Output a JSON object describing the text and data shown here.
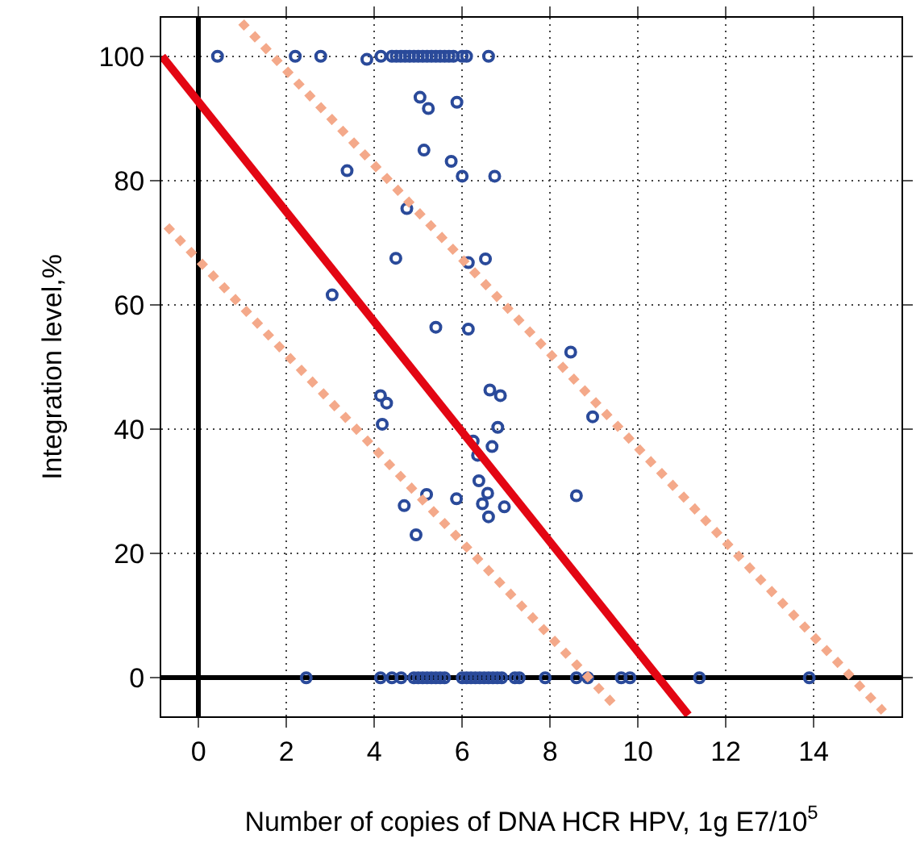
{
  "chart_data": {
    "type": "scatter",
    "xlabel": "Number of copies of DNA HCR HPV, 1g E7/10$^{5}$",
    "ylabel": "Integration level,%",
    "xlim": [
      -0.85,
      16
    ],
    "ylim": [
      -6.2,
      106.2
    ],
    "xticks": [
      0,
      2,
      4,
      6,
      8,
      10,
      12,
      14
    ],
    "yticks": [
      0,
      20,
      40,
      60,
      80,
      100
    ],
    "grid": true,
    "series": [
      {
        "color": "#2a4a9a",
        "marker": "circle",
        "x": [
          0.43,
          2.2,
          2.78,
          3.83,
          4.15,
          4.4,
          4.5,
          4.6,
          4.7,
          4.8,
          4.9,
          5.0,
          5.1,
          5.2,
          5.3,
          5.4,
          5.5,
          5.6,
          5.7,
          5.8,
          6.0,
          6.1,
          6.6,
          5.04,
          5.23,
          5.88,
          5.13,
          5.75,
          6.0,
          6.74,
          3.38,
          4.74,
          4.49,
          6.14,
          6.53,
          3.04,
          5.4,
          6.14,
          4.14,
          4.28,
          4.18,
          6.63,
          6.87,
          6.81,
          6.25,
          6.68,
          6.35,
          6.38,
          6.58,
          6.46,
          6.96,
          6.6,
          5.19,
          5.87,
          4.68,
          4.95,
          8.47,
          8.97,
          8.6,
          2.45,
          4.14,
          4.4,
          4.61,
          4.9,
          5.0,
          5.1,
          5.2,
          5.3,
          5.4,
          5.5,
          5.6,
          6.0,
          6.1,
          6.2,
          6.3,
          6.4,
          6.5,
          6.6,
          6.7,
          6.8,
          6.9,
          7.2,
          7.3,
          7.89,
          8.6,
          8.86,
          9.62,
          9.82,
          11.4,
          13.9
        ],
        "values": [
          100,
          100,
          100,
          99.5,
          100,
          100,
          100,
          100,
          100,
          100,
          100,
          100,
          100,
          100,
          100,
          100,
          100,
          100,
          100,
          100,
          100,
          100,
          100,
          93.4,
          91.6,
          92.6,
          84.9,
          83.1,
          80.7,
          80.7,
          81.6,
          75.5,
          67.5,
          66.8,
          67.4,
          61.6,
          56.4,
          56.1,
          45.4,
          44.2,
          40.8,
          46.3,
          45.4,
          40.3,
          38.1,
          37.2,
          35.8,
          31.7,
          29.7,
          28.0,
          27.5,
          25.9,
          29.5,
          28.8,
          27.7,
          23.0,
          52.4,
          42.0,
          29.3,
          0,
          0,
          0,
          0,
          0,
          0,
          0,
          0,
          0,
          0,
          0,
          0,
          0,
          0,
          0,
          0,
          0,
          0,
          0,
          0,
          0,
          0,
          0,
          0,
          0,
          0,
          0,
          0,
          0,
          0,
          0
        ]
      },
      {
        "type": "line",
        "color": "#e30613",
        "marker": "none",
        "line_style": "solid",
        "x": [
          -0.83,
          11.15
        ],
        "values": [
          100,
          -6
        ]
      },
      {
        "type": "line",
        "color": "#f4a98a",
        "marker": "none",
        "line_style": "dotted",
        "x": [
          0.97,
          15.6
        ],
        "values": [
          105.5,
          -5.5
        ]
      },
      {
        "type": "line",
        "color": "#f4a98a",
        "marker": "none",
        "line_style": "dotted",
        "x": [
          -0.73,
          9.53
        ],
        "values": [
          72.7,
          -4.9
        ]
      }
    ]
  }
}
